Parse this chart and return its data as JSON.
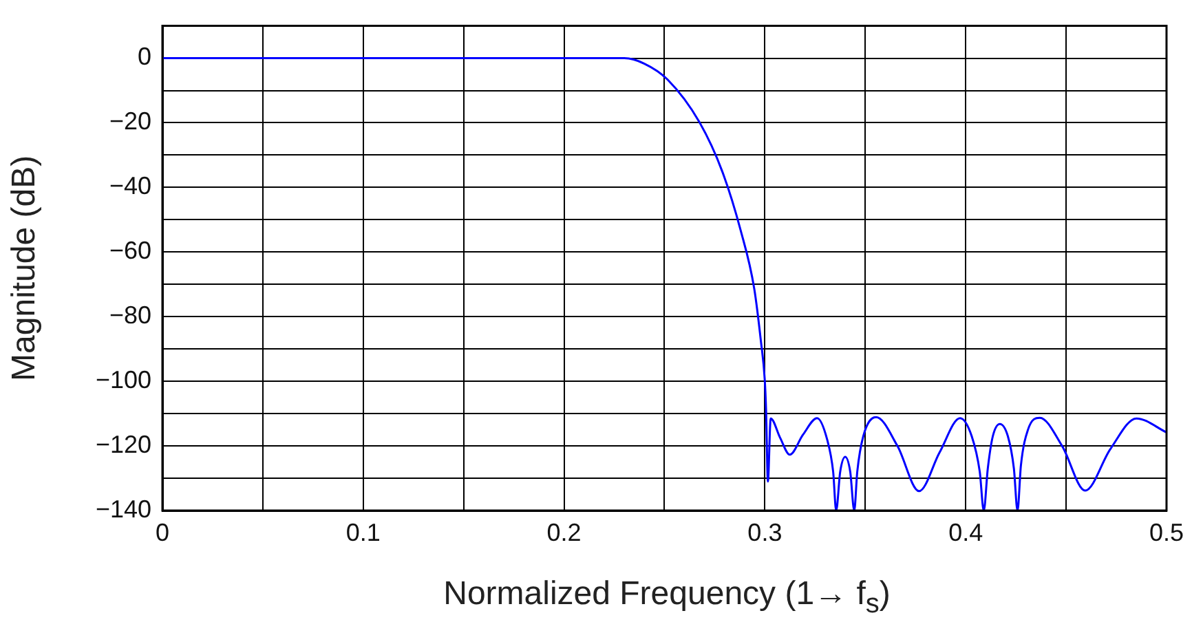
{
  "chart_data": {
    "type": "line",
    "xlabel": "Normalized Frequency (1→ f$_{s}$)",
    "ylabel": "Magnitude (dB)",
    "xlim": [
      0,
      0.5
    ],
    "ylim": [
      -140,
      10
    ],
    "xticks": [
      0,
      {
        "value": 0.05,
        "label": null
      },
      0.1,
      {
        "value": 0.15,
        "label": null
      },
      0.2,
      {
        "value": 0.25,
        "label": null
      },
      0.3,
      {
        "value": 0.35,
        "label": null
      },
      0.4,
      {
        "value": 0.45,
        "label": null
      },
      0.5
    ],
    "yticks": [
      {
        "value": -140,
        "label": "−140"
      },
      {
        "value": -130,
        "label": null
      },
      {
        "value": -120,
        "label": "−120"
      },
      {
        "value": -110,
        "label": null
      },
      {
        "value": -100,
        "label": "−100"
      },
      {
        "value": -90,
        "label": null
      },
      {
        "value": -80,
        "label": "−80"
      },
      {
        "value": -70,
        "label": null
      },
      {
        "value": -60,
        "label": "−60"
      },
      {
        "value": -50,
        "label": null
      },
      {
        "value": -40,
        "label": "−40"
      },
      {
        "value": -30,
        "label": null
      },
      {
        "value": -20,
        "label": "−20"
      },
      {
        "value": -10,
        "label": null
      },
      0
    ],
    "grid": true,
    "legend": false,
    "line_style": "solid",
    "marker": "none",
    "series": [
      {
        "color": "#0000ff",
        "x": [
          0,
          0.1,
          0.2,
          0.23,
          0.24,
          0.2515,
          0.2674,
          0.2788,
          0.2879,
          0.2947,
          0.2981,
          0.2999,
          0.3006,
          0.3015,
          0.3029,
          0.3076,
          0.3124,
          0.319,
          0.326,
          0.331,
          0.334,
          0.3355,
          0.3375,
          0.34,
          0.3425,
          0.3445,
          0.346,
          0.349,
          0.3554,
          0.366,
          0.3768,
          0.387,
          0.3972,
          0.403,
          0.407,
          0.409,
          0.411,
          0.4135,
          0.417,
          0.421,
          0.424,
          0.4258,
          0.4275,
          0.431,
          0.4369,
          0.448,
          0.4595,
          0.472,
          0.485,
          0.5
        ],
        "values": [
          0,
          0,
          0,
          0,
          -1.7,
          -6.6,
          -19.8,
          -35.1,
          -53.2,
          -71.3,
          -88,
          -99.2,
          -109,
          -131,
          -111.5,
          -117.5,
          -122.7,
          -116.5,
          -111.4,
          -118,
          -128,
          -140,
          -128,
          -123.4,
          -128,
          -140,
          -128,
          -117,
          -111.1,
          -120,
          -134,
          -122,
          -111.4,
          -117,
          -128,
          -140,
          -127,
          -117,
          -113.2,
          -117,
          -127,
          -140,
          -126,
          -115,
          -111.3,
          -120,
          -133.8,
          -121,
          -111.5,
          -115.8
        ]
      }
    ]
  }
}
